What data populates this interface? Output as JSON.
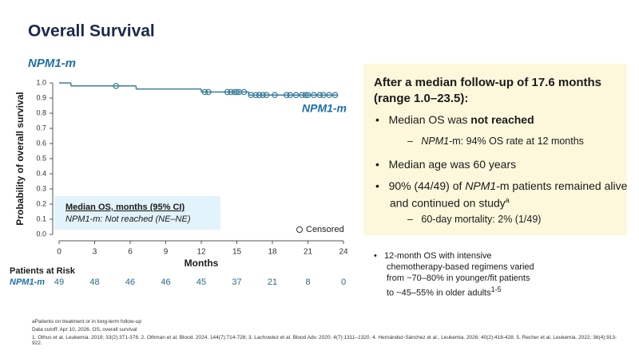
{
  "title": "Overall Survival",
  "chart_data": {
    "type": "step",
    "subtitle": "NPM1-m",
    "ylabel": "Probability of overall survival",
    "xlabel": "Months",
    "xlim": [
      0,
      24
    ],
    "xticks": [
      0,
      3,
      6,
      9,
      12,
      15,
      18,
      21,
      24
    ],
    "ylim": [
      0,
      1
    ],
    "yticks": [
      {
        "value": 0,
        "label": "0.0"
      },
      {
        "value": 0.1,
        "label": "0.1"
      },
      {
        "value": 0.2,
        "label": "0.2"
      },
      {
        "value": 0.3,
        "label": "0.3"
      },
      {
        "value": 0.4,
        "label": "0.4"
      },
      {
        "value": 0.5,
        "label": "0.5"
      },
      {
        "value": 0.6,
        "label": "0.6"
      },
      {
        "value": 0.7,
        "label": "0.7"
      },
      {
        "value": 0.8,
        "label": "0.8"
      },
      {
        "value": 0.9,
        "label": "0.9"
      },
      {
        "value": 1,
        "label": "1.0"
      }
    ],
    "series": [
      {
        "name": "NPM1-m",
        "color": "#3a7d99",
        "x": [
          0,
          1,
          6.5,
          12,
          16,
          23.5
        ],
        "values": [
          1,
          0.98,
          0.96,
          0.94,
          0.92,
          0.92
        ]
      }
    ],
    "censored": {
      "name": "Censored",
      "x": [
        4.8,
        12.3,
        12.6,
        14.2,
        14.5,
        14.8,
        15.0,
        15.2,
        15.6,
        16.2,
        16.6,
        16.9,
        17.2,
        17.5,
        18.2,
        19.2,
        19.5,
        20.0,
        20.5,
        20.8,
        21.0,
        21.5,
        22.0,
        22.3,
        22.8,
        23.3
      ],
      "values": [
        0.98,
        0.94,
        0.94,
        0.94,
        0.94,
        0.94,
        0.94,
        0.94,
        0.94,
        0.92,
        0.92,
        0.92,
        0.92,
        0.92,
        0.92,
        0.92,
        0.92,
        0.92,
        0.92,
        0.92,
        0.92,
        0.92,
        0.92,
        0.92,
        0.92,
        0.92
      ]
    },
    "legend": {
      "heading": "Median OS, months (95% CI)",
      "row": "NPM1-m: Not reached (NE–NE)"
    },
    "risk_table": {
      "title": "Patients at Risk",
      "label": "NPM1-m",
      "values": [
        49,
        48,
        46,
        46,
        45,
        37,
        21,
        8,
        0
      ]
    }
  },
  "panel": {
    "heading": "After a median follow-up of 17.6 months (range 1.0–23.5):",
    "b1": [
      "Median OS was ",
      "not reached"
    ],
    "s1": [
      "NPM1",
      "-m: 94% OS rate at 12 months"
    ],
    "b2": "Median age was 60 years",
    "b3": [
      "90% (44/49) of ",
      "NPM1",
      "-m patients remained alive and continued on study",
      "a"
    ],
    "s3": "60-day mortality: 2% (1/49)"
  },
  "note": [
    "12-month OS with intensive chemotherapy-based regimens varied from ~70–80% in younger/fit patients to ~45–55% in older adults",
    "1-5"
  ],
  "footnotes": [
    "aPatients on treatment or in long-term follow-up",
    "Data cutoff: Apr 10, 2026. OS, overall survival",
    "1. Othus et al. Leukemia. 2019; 33(2):371-378. 2. Othman et al. Blood. 2024. 144(7):714-728; 3. Lachowiez et al. Blood Adv. 2020; 4(7):1311–1320. 4. Hernández-Sánchez et al., Leukemia. 2026; 40(2):418-428. 5. Recher et al. Leukemia. 2022; 36(4):913-922."
  ]
}
